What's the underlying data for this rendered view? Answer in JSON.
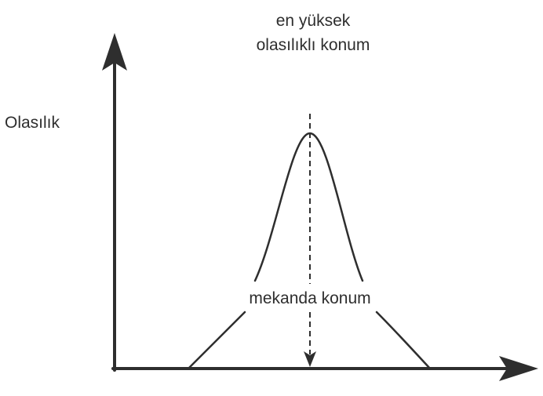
{
  "diagram": {
    "y_axis_label": "Olasılık",
    "peak_label_line1": "en yüksek",
    "peak_label_line2": "olasılıklı konum",
    "center_label": "mekanda konum"
  },
  "colors": {
    "ink": "#2e2e2e",
    "background": "#ffffff"
  }
}
